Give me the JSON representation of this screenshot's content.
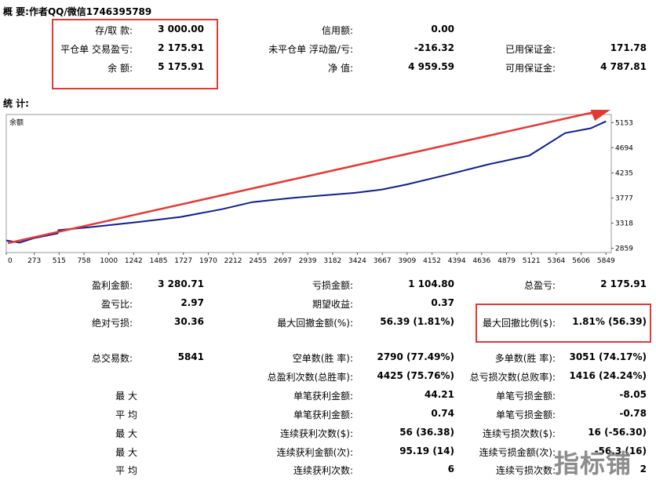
{
  "summary": {
    "title": "概 要:作者QQ/微信1746395789",
    "deposit_label": "存/取 款:",
    "deposit_value": "3 000.00",
    "closed_pl_label": "平仓单 交易盈亏:",
    "closed_pl_value": "2 175.91",
    "balance_label": "余 额:",
    "balance_value": "5 175.91",
    "credit_label": "信用额:",
    "credit_value": "0.00",
    "floating_label": "未平仓单 浮动盈/亏:",
    "floating_value": "-216.32",
    "equity_label": "净 值:",
    "equity_value": "4 959.59",
    "margin_label": "已用保证金:",
    "margin_value": "171.78",
    "free_margin_label": "可用保证金:",
    "free_margin_value": "4 787.81"
  },
  "stats_title": "统 计:",
  "chart_data": {
    "type": "line",
    "legend": "余额",
    "x_ticks": [
      "0",
      "273",
      "515",
      "758",
      "1000",
      "1242",
      "1485",
      "1727",
      "1970",
      "2212",
      "2455",
      "2697",
      "2939",
      "3182",
      "3424",
      "3667",
      "3909",
      "4152",
      "4394",
      "4636",
      "4879",
      "5121",
      "5364",
      "5606",
      "5849"
    ],
    "y_ticks": [
      "5153",
      "4694",
      "4235",
      "3777",
      "3318",
      "2859"
    ],
    "xlim": [
      0,
      5900
    ],
    "ylim": [
      2780,
      5300
    ],
    "series": [
      {
        "x": [
          0,
          130,
          265,
          500,
          510,
          800,
          1050,
          1300,
          1700,
          2100,
          2400,
          2800,
          3400,
          3660,
          3900,
          4300,
          4700,
          5100,
          5450,
          5700,
          5849
        ],
        "y": [
          3000,
          2960,
          3040,
          3130,
          3190,
          3240,
          3290,
          3340,
          3430,
          3570,
          3700,
          3780,
          3870,
          3930,
          4020,
          4200,
          4390,
          4550,
          4960,
          5050,
          5175
        ]
      }
    ]
  },
  "stats": {
    "gross_profit_label": "盈利金额:",
    "gross_profit_value": "3 280.71",
    "gross_loss_label": "亏损金额:",
    "gross_loss_value": "1 104.80",
    "total_net_label": "总盈亏:",
    "total_net_value": "2 175.91",
    "profit_factor_label": "盈亏比:",
    "profit_factor_value": "2.97",
    "expected_payoff_label": "期望收益:",
    "expected_payoff_value": "0.37",
    "abs_drawdown_label": "绝对亏损:",
    "abs_drawdown_value": "30.36",
    "max_drawdown_label": "最大回撤金额(%):",
    "max_drawdown_value": "56.39 (1.81%)",
    "rel_drawdown_label": "最大回撤比例($):",
    "rel_drawdown_value": "1.81% (56.39)",
    "total_trades_label": "总交易数:",
    "total_trades_value": "5841",
    "short_label": "空单数(胜 率):",
    "short_value": "2790 (77.49%)",
    "long_label": "多单数(胜 率):",
    "long_value": "3051 (74.17%)",
    "profit_trades_label": "总盈利次数(总胜率):",
    "profit_trades_value": "4425 (75.76%)",
    "loss_trades_label": "总亏损次数(总败率):",
    "loss_trades_value": "1416 (24.24%)",
    "largest_label": "最 大",
    "largest_profit_label": "单笔获利金额:",
    "largest_profit_value": "44.21",
    "largest_loss_label": "单笔亏损金额:",
    "largest_loss_value": "-8.05",
    "average_label": "平 均",
    "avg_profit_label": "单笔获利金额:",
    "avg_profit_value": "0.74",
    "avg_loss_label": "单笔亏损金额:",
    "avg_loss_value": "-0.78",
    "max_label": "最 大",
    "max_cons_wins_label": "连续获利次数($):",
    "max_cons_wins_value": "56 (36.38)",
    "max_cons_losses_label": "连续亏损次数($):",
    "max_cons_losses_value": "16 (-56.30)",
    "max2_label": "最 大",
    "max_cons_profit_label": "连续获利金额(次):",
    "max_cons_profit_value": "95.19 (14)",
    "max_cons_loss_label": "连续亏损金额(次):",
    "max_cons_loss_value": "-56.3 (16)",
    "avg2_label": "平 均",
    "avg_cons_wins_label": "连续获利次数:",
    "avg_cons_wins_value": "6",
    "avg_cons_losses_label": "连续亏损次数:",
    "avg_cons_losses_value": "2"
  },
  "watermark": "指标铺"
}
